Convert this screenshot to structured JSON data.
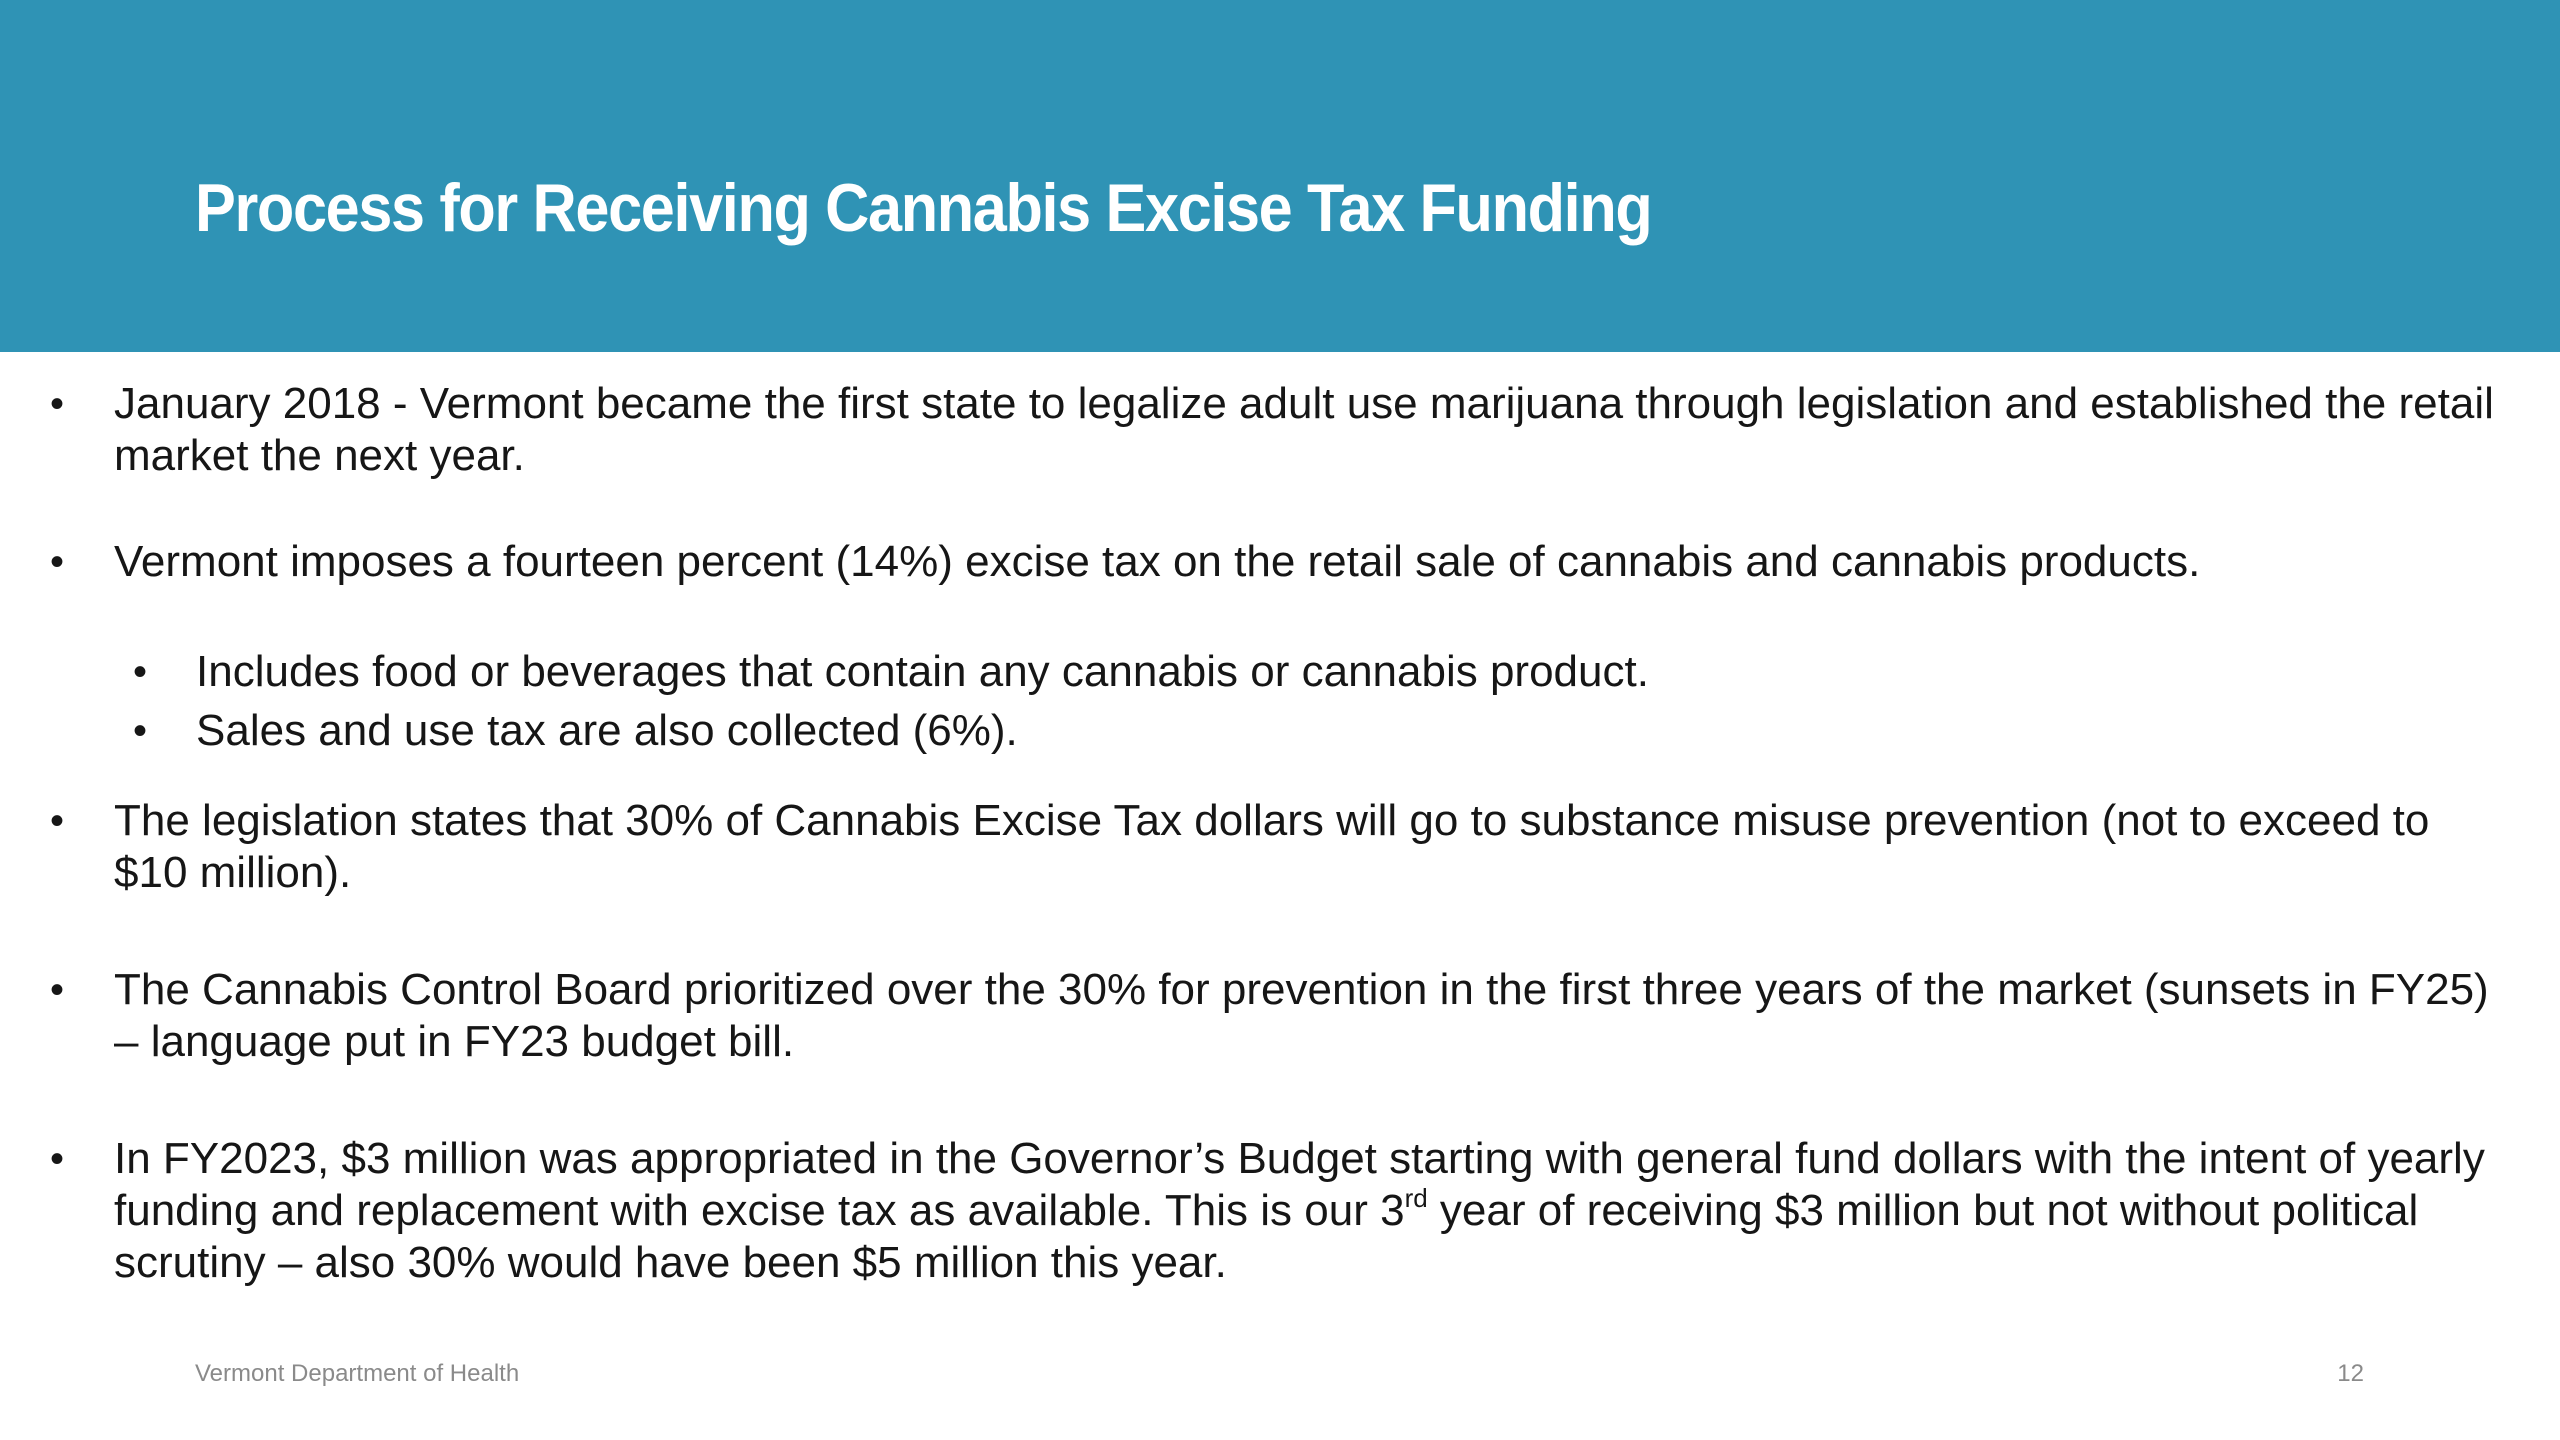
{
  "slide": {
    "title": "Process for Receiving Cannabis Excise Tax Funding",
    "colors": {
      "header_band": "#2f93b5",
      "title_text": "#ffffff",
      "body_text": "#161616",
      "footer_text": "#8a8a8a"
    }
  },
  "bullets": [
    {
      "text": "January 2018 - Vermont became the first state to legalize adult use marijuana through legislation and established the retail market the next year."
    },
    {
      "text": "Vermont imposes a fourteen percent (14%) excise tax on the retail sale of cannabis and cannabis products.",
      "sub": [
        "Includes food or beverages that contain any cannabis or cannabis product.",
        "Sales and use tax are also collected (6%)."
      ]
    },
    {
      "text": "The legislation states that 30% of Cannabis Excise Tax dollars will go to substance misuse prevention (not to exceed to $10 million)."
    },
    {
      "text": "The Cannabis Control Board prioritized over the 30% for prevention in the first three years of the market (sunsets in FY25) – language put in FY23 budget bill."
    },
    {
      "text_before_sup": "In FY2023,  $3 million was appropriated in the Governor’s Budget starting with general fund dollars with the intent of yearly funding and replacement with excise tax as available.  This is our 3",
      "sup": "rd",
      "text_after_sup": " year of receiving $3 million but not without political scrutiny – also 30% would have been $5 million this year."
    }
  ],
  "bullet_glyph": "•",
  "footer": {
    "organization": "Vermont Department of Health",
    "page_number": "12"
  }
}
